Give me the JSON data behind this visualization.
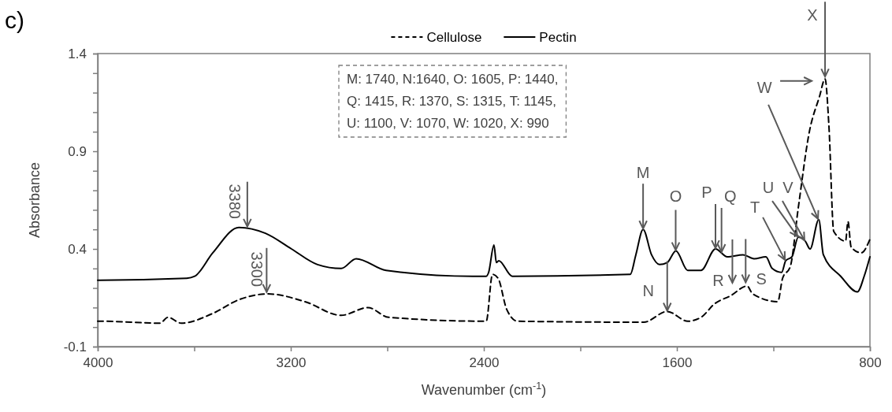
{
  "chart_data": {
    "type": "line",
    "title": "c)",
    "xlabel": "Wavenumber (cm$^{-1}$)",
    "ylabel": "Absorbance",
    "xlim": [
      4000,
      800
    ],
    "xticks": [
      4000,
      {
        "value": 3600,
        "label": null
      },
      3200,
      {
        "value": 2800,
        "label": null
      },
      2400,
      {
        "value": 2000,
        "label": null
      },
      1600,
      {
        "value": 1200,
        "label": null
      },
      800
    ],
    "ylim": [
      -0.1,
      1.4
    ],
    "yticks": [
      -0.1,
      {
        "value": 0,
        "label": null
      },
      {
        "value": 0.1,
        "label": null
      },
      {
        "value": 0.2,
        "label": null
      },
      {
        "value": 0.3,
        "label": null
      },
      0.4,
      {
        "value": 0.5,
        "label": null
      },
      {
        "value": 0.6,
        "label": null
      },
      {
        "value": 0.7,
        "label": null
      },
      {
        "value": 0.8,
        "label": null
      },
      0.9,
      {
        "value": 1.0,
        "label": null
      },
      {
        "value": 1.1,
        "label": null
      },
      {
        "value": 1.2,
        "label": null
      },
      {
        "value": 1.3,
        "label": null
      },
      1.4
    ],
    "legend": "top",
    "grid": false,
    "marker": "none",
    "series": [
      {
        "name": "Cellulose",
        "color": "#000000",
        "line_style": "dashed",
        "x": [
          4000,
          3980,
          3742,
          3709,
          3654,
          3523,
          3415,
          3295,
          3141,
          2991,
          2880,
          2795,
          2390,
          2364,
          2341,
          2305,
          2260,
          1737,
          1640,
          1555,
          1500,
          1443,
          1378,
          1309,
          1286,
          1182,
          1162,
          1130,
          1097,
          1051,
          1009,
          986,
          970,
          950,
          901,
          891,
          878,
          836,
          800
        ],
        "values": [
          0.03,
          0.03,
          0.02,
          0.05,
          0.02,
          0.07,
          0.14,
          0.17,
          0.13,
          0.06,
          0.1,
          0.05,
          0.03,
          0.27,
          0.25,
          0.09,
          0.03,
          0.025,
          0.08,
          0.03,
          0.05,
          0.12,
          0.16,
          0.21,
          0.17,
          0.13,
          0.25,
          0.31,
          0.61,
          1.0,
          1.18,
          1.27,
          1.03,
          0.49,
          0.44,
          0.54,
          0.41,
          0.38,
          0.45
        ]
      },
      {
        "name": "Pectin",
        "color": "#000000",
        "line_style": "solid",
        "x": [
          4000,
          3990,
          3631,
          3598,
          3523,
          3415,
          3305,
          3197,
          3089,
          2991,
          2929,
          2805,
          2446,
          2390,
          2380,
          2358,
          2348,
          2338,
          2282,
          1793,
          1770,
          1740,
          1705,
          1672,
          1640,
          1604,
          1555,
          1500,
          1440,
          1391,
          1326,
          1280,
          1231,
          1205,
          1166,
          1149,
          1123,
          1097,
          1068,
          1048,
          1012,
          993,
          921,
          852,
          824,
          800
        ],
        "values": [
          0.24,
          0.24,
          0.25,
          0.26,
          0.38,
          0.51,
          0.48,
          0.4,
          0.32,
          0.3,
          0.35,
          0.29,
          0.26,
          0.26,
          0.28,
          0.42,
          0.33,
          0.34,
          0.26,
          0.27,
          0.37,
          0.5,
          0.37,
          0.32,
          0.33,
          0.39,
          0.29,
          0.29,
          0.4,
          0.36,
          0.37,
          0.35,
          0.36,
          0.3,
          0.28,
          0.34,
          0.36,
          0.46,
          0.44,
          0.4,
          0.55,
          0.37,
          0.26,
          0.18,
          0.26,
          0.36
        ]
      }
    ],
    "annotations": [
      "M: 1740, N:1640, O: 1605, P: 1440,\nQ: 1415, R: 1370, S: 1315, T: 1145,\nU: 1100, V: 1070, W: 1020, X: 990",
      {
        "text": "3380",
        "x": 3380,
        "y": 0.51
      },
      {
        "text": "3300",
        "x": 3300,
        "y": 0.175
      },
      {
        "text": "M",
        "x": 1740,
        "y": 0.5
      },
      {
        "text": "N",
        "x": 1640,
        "y": 0.08
      },
      {
        "text": "O",
        "x": 1605,
        "y": 0.39
      },
      {
        "text": "P",
        "x": 1440,
        "y": 0.4
      },
      {
        "text": "Q",
        "x": 1415,
        "y": 0.38
      },
      {
        "text": "R",
        "x": 1370,
        "y": 0.36
      },
      {
        "text": "S",
        "x": 1315,
        "y": 0.37
      },
      {
        "text": "T",
        "x": 1149,
        "y": 0.34
      },
      {
        "text": "U",
        "x": 1097,
        "y": 0.46
      },
      {
        "text": "V",
        "x": 1068,
        "y": 0.44
      },
      {
        "text": "W",
        "x": 1012,
        "y": 0.55
      },
      {
        "text": "X",
        "x": 986,
        "y": 1.27
      }
    ]
  }
}
